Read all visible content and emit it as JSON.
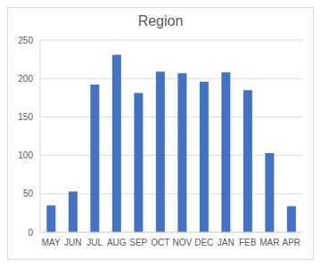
{
  "chart_data": {
    "type": "bar",
    "title": "Region",
    "categories": [
      "MAY",
      "JUN",
      "JUL",
      "AUG",
      "SEP",
      "OCT",
      "NOV",
      "DEC",
      "JAN",
      "FEB",
      "MAR",
      "APR"
    ],
    "values": [
      35,
      53,
      192,
      231,
      181,
      209,
      207,
      196,
      208,
      185,
      103,
      34
    ],
    "color": "#4472c4",
    "ylim": [
      0,
      250
    ],
    "yticks": [
      0,
      50,
      100,
      150,
      200,
      250
    ],
    "grid": true
  }
}
